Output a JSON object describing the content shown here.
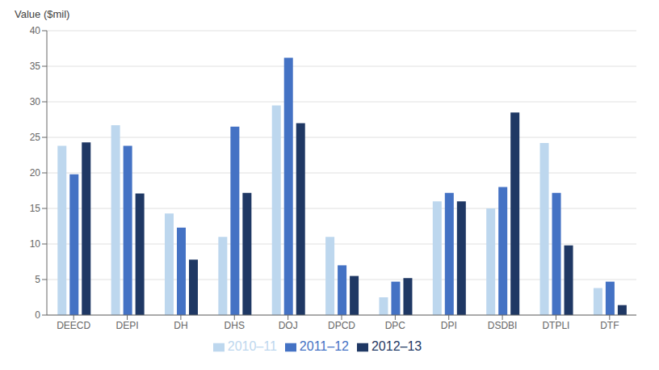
{
  "chart_data": {
    "type": "bar",
    "ylabel": "Value ($mil)",
    "categories": [
      "DEECD",
      "DEPI",
      "DH",
      "DHS",
      "DOJ",
      "DPCD",
      "DPC",
      "DPI",
      "DSDBI",
      "DTPLI",
      "DTF"
    ],
    "series": [
      {
        "name": "2010–11",
        "color": "#bdd7ee",
        "values": [
          23.8,
          26.7,
          14.3,
          11.0,
          29.5,
          11.0,
          2.5,
          16.0,
          15.0,
          24.2,
          3.8
        ]
      },
      {
        "name": "2011–12",
        "color": "#4472c4",
        "values": [
          19.8,
          23.8,
          12.3,
          26.5,
          36.2,
          7.0,
          4.7,
          17.2,
          18.0,
          17.2,
          4.7
        ]
      },
      {
        "name": "2012–13",
        "color": "#1f3864",
        "values": [
          24.3,
          17.1,
          7.8,
          17.2,
          27.0,
          5.5,
          5.2,
          16.0,
          28.5,
          9.8,
          1.4
        ]
      }
    ],
    "ylim": [
      0,
      40
    ],
    "yticks": [
      0,
      5,
      10,
      15,
      20,
      25,
      30,
      35,
      40
    ],
    "grid": true,
    "legend": "bottom"
  }
}
